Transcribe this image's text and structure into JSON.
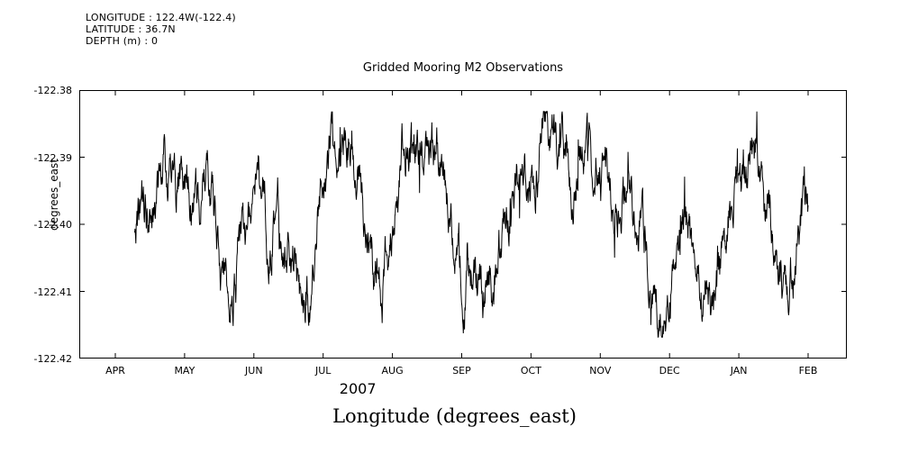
{
  "header": {
    "info_lines": [
      "LONGITUDE : 122.4W(-122.4)",
      "LATITUDE : 36.7N",
      "DEPTH (m) : 0"
    ],
    "title": "Gridded Mooring M2 Observations"
  },
  "axes": {
    "ylabel": "degrees_east",
    "xlabel": "Longitude (degrees_east)",
    "year_label": "2007",
    "y_ticks": [
      "-122.38",
      "-122.39",
      "-122.40",
      "-122.41",
      "-122.42"
    ],
    "x_ticks": [
      "APR",
      "MAY",
      "JUN",
      "JUL",
      "AUG",
      "SEP",
      "OCT",
      "NOV",
      "DEC",
      "JAN",
      "FEB"
    ]
  },
  "chart_data": {
    "type": "line",
    "title": "Gridded Mooring M2 Observations",
    "xlabel": "Longitude (degrees_east)",
    "ylabel": "degrees_east",
    "x_tick_labels": [
      "APR",
      "MAY",
      "JUN",
      "JUL",
      "AUG",
      "SEP",
      "OCT",
      "NOV",
      "DEC",
      "JAN",
      "FEB"
    ],
    "x_unit": "month index, APR 2007 = 0 through FEB 2008 = 10",
    "ylim": [
      -122.42,
      -122.38
    ],
    "grid": false,
    "legend": "none",
    "line_color": "#000000",
    "axis_color": "#000000",
    "series": [
      {
        "name": "longitude (degrees_east)",
        "x_start": 0.28,
        "x_end": 10.0,
        "n_points": 1800,
        "trend_x": [
          0.28,
          0.5,
          0.7,
          0.9,
          1.05,
          1.2,
          1.35,
          1.5,
          1.65,
          1.8,
          1.95,
          2.1,
          2.25,
          2.4,
          2.55,
          2.7,
          2.85,
          3.0,
          3.1,
          3.25,
          3.4,
          3.55,
          3.7,
          3.85,
          4.0,
          4.15,
          4.3,
          4.5,
          4.7,
          4.9,
          5.05,
          5.2,
          5.4,
          5.6,
          5.8,
          6.0,
          6.2,
          6.4,
          6.6,
          6.8,
          7.0,
          7.2,
          7.4,
          7.6,
          7.75,
          7.9,
          8.05,
          8.2,
          8.35,
          8.5,
          8.65,
          8.8,
          8.95,
          9.1,
          9.25,
          9.4,
          9.55,
          9.7,
          9.85,
          10.0
        ],
        "trend_y": [
          -122.4,
          -122.398,
          -122.392,
          -122.395,
          -122.391,
          -122.398,
          -122.393,
          -122.403,
          -122.411,
          -122.405,
          -122.397,
          -122.392,
          -122.403,
          -122.398,
          -122.406,
          -122.412,
          -122.408,
          -122.393,
          -122.388,
          -122.39,
          -122.386,
          -122.395,
          -122.405,
          -122.413,
          -122.398,
          -122.389,
          -122.386,
          -122.388,
          -122.391,
          -122.4,
          -122.406,
          -122.41,
          -122.409,
          -122.403,
          -122.396,
          -122.391,
          -122.388,
          -122.39,
          -122.393,
          -122.391,
          -122.393,
          -122.396,
          -122.393,
          -122.402,
          -122.409,
          -122.413,
          -122.405,
          -122.398,
          -122.403,
          -122.409,
          -122.412,
          -122.404,
          -122.397,
          -122.392,
          -122.389,
          -122.398,
          -122.408,
          -122.413,
          -122.402,
          -122.399
        ],
        "noise": {
          "seed": 42,
          "phi": 0.88,
          "innovation": 0.005,
          "spike_probability": 0.03,
          "spike_amplitude": 0.01
        },
        "clip": [
          -122.4168,
          -122.3832
        ]
      }
    ]
  }
}
